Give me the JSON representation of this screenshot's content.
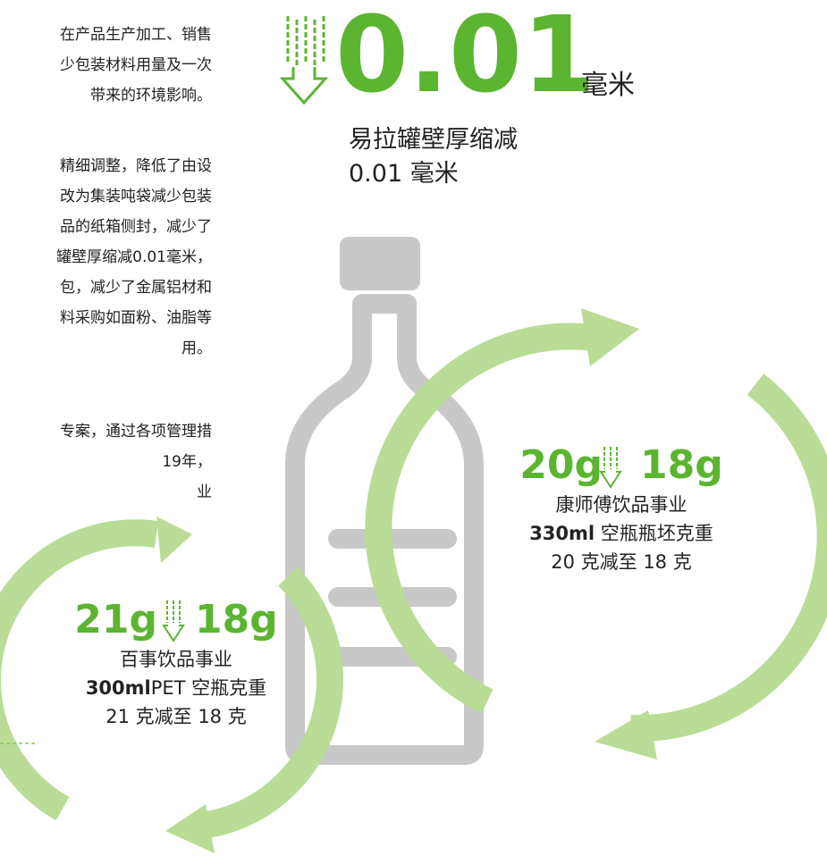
{
  "left_text": {
    "lines": [
      "在产品生产加工、销售",
      "少包装材料用量及一次",
      "带来的环境影响。",
      "精细调整，降低了由设",
      "改为集装吨袋减少包装",
      "品的纸箱侧封，减少了",
      "罐壁厚缩减0.01毫米，",
      "包，减少了金属铝材和",
      "料采购如面粉、油脂等",
      "用。",
      "专案，通过各项管理措",
      "19年，",
      "业"
    ]
  },
  "highlight": {
    "value": "0.01",
    "unit": "毫米",
    "caption": [
      "易拉罐壁厚缩减",
      "0.01 毫米"
    ]
  },
  "cards": [
    {
      "from": "20g",
      "to": "18g",
      "line1": "康师傅饮品事业",
      "volume": "330ml",
      "item": " 空瓶瓶坯克重",
      "line3": "20 克减至 18 克"
    },
    {
      "from": "21g",
      "to": "18g",
      "line1": "百事饮品事业",
      "volume": "300ml",
      "item": "PET 空瓶克重",
      "line3": "21 克减至 18 克"
    }
  ]
}
